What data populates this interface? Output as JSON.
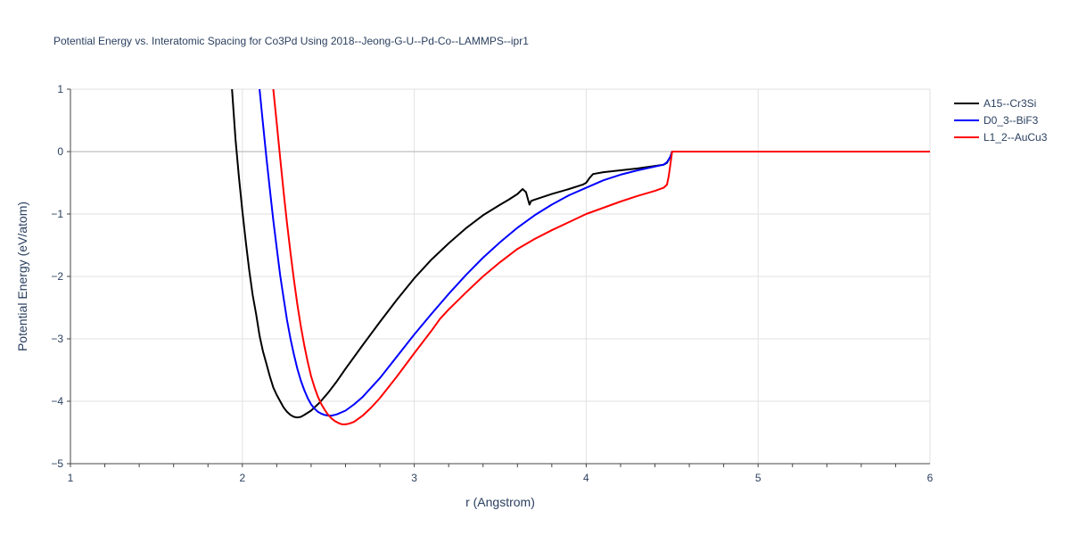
{
  "chart_data": {
    "type": "line",
    "title": "Potential Energy vs. Interatomic Spacing for Co3Pd Using 2018--Jeong-G-U--Pd-Co--LAMMPS--ipr1",
    "xlabel": "r (Angstrom)",
    "ylabel": "Potential Energy (eV/atom)",
    "xlim": [
      1,
      6
    ],
    "ylim": [
      -5,
      1
    ],
    "xticks": [
      "1",
      "2",
      "3",
      "4",
      "5",
      "6"
    ],
    "yticks": [
      "1",
      "0",
      "−1",
      "−2",
      "−3",
      "−4",
      "−5"
    ],
    "grid": true,
    "legend_position": "top-right",
    "series": [
      {
        "name": "A15--Cr3Si",
        "color": "#000000",
        "points": [
          [
            1.94,
            1.0
          ],
          [
            1.96,
            0.2
          ],
          [
            1.98,
            -0.4
          ],
          [
            2.0,
            -0.95
          ],
          [
            2.02,
            -1.45
          ],
          [
            2.04,
            -1.9
          ],
          [
            2.06,
            -2.3
          ],
          [
            2.08,
            -2.6
          ],
          [
            2.1,
            -2.95
          ],
          [
            2.12,
            -3.2
          ],
          [
            2.14,
            -3.4
          ],
          [
            2.16,
            -3.6
          ],
          [
            2.18,
            -3.78
          ],
          [
            2.2,
            -3.9
          ],
          [
            2.22,
            -4.0
          ],
          [
            2.24,
            -4.1
          ],
          [
            2.26,
            -4.17
          ],
          [
            2.28,
            -4.22
          ],
          [
            2.3,
            -4.25
          ],
          [
            2.32,
            -4.26
          ],
          [
            2.34,
            -4.25
          ],
          [
            2.36,
            -4.22
          ],
          [
            2.4,
            -4.15
          ],
          [
            2.45,
            -4.02
          ],
          [
            2.5,
            -3.86
          ],
          [
            2.55,
            -3.68
          ],
          [
            2.6,
            -3.48
          ],
          [
            2.7,
            -3.1
          ],
          [
            2.8,
            -2.73
          ],
          [
            2.9,
            -2.37
          ],
          [
            3.0,
            -2.03
          ],
          [
            3.1,
            -1.73
          ],
          [
            3.2,
            -1.47
          ],
          [
            3.3,
            -1.23
          ],
          [
            3.4,
            -1.02
          ],
          [
            3.5,
            -0.85
          ],
          [
            3.55,
            -0.77
          ],
          [
            3.6,
            -0.68
          ],
          [
            3.63,
            -0.6
          ],
          [
            3.65,
            -0.65
          ],
          [
            3.67,
            -0.85
          ],
          [
            3.68,
            -0.79
          ],
          [
            3.7,
            -0.77
          ],
          [
            3.8,
            -0.68
          ],
          [
            3.9,
            -0.6
          ],
          [
            3.98,
            -0.53
          ],
          [
            4.0,
            -0.5
          ],
          [
            4.02,
            -0.42
          ],
          [
            4.04,
            -0.36
          ],
          [
            4.1,
            -0.33
          ],
          [
            4.2,
            -0.3
          ],
          [
            4.3,
            -0.27
          ],
          [
            4.4,
            -0.23
          ],
          [
            4.45,
            -0.21
          ],
          [
            4.47,
            -0.18
          ],
          [
            4.49,
            -0.08
          ],
          [
            4.5,
            0.0
          ],
          [
            5.0,
            0.0
          ],
          [
            5.5,
            0.0
          ],
          [
            6.0,
            0.0
          ]
        ]
      },
      {
        "name": "D0_3--BiF3",
        "color": "#0000ff",
        "points": [
          [
            2.1,
            1.0
          ],
          [
            2.12,
            0.45
          ],
          [
            2.14,
            -0.1
          ],
          [
            2.16,
            -0.6
          ],
          [
            2.18,
            -1.1
          ],
          [
            2.2,
            -1.55
          ],
          [
            2.22,
            -1.98
          ],
          [
            2.24,
            -2.35
          ],
          [
            2.26,
            -2.7
          ],
          [
            2.28,
            -3.0
          ],
          [
            2.3,
            -3.25
          ],
          [
            2.32,
            -3.48
          ],
          [
            2.34,
            -3.67
          ],
          [
            2.36,
            -3.82
          ],
          [
            2.38,
            -3.95
          ],
          [
            2.4,
            -4.05
          ],
          [
            2.42,
            -4.12
          ],
          [
            2.44,
            -4.17
          ],
          [
            2.46,
            -4.2
          ],
          [
            2.48,
            -4.22
          ],
          [
            2.5,
            -4.23
          ],
          [
            2.52,
            -4.23
          ],
          [
            2.55,
            -4.21
          ],
          [
            2.6,
            -4.15
          ],
          [
            2.65,
            -4.05
          ],
          [
            2.7,
            -3.93
          ],
          [
            2.8,
            -3.63
          ],
          [
            2.9,
            -3.28
          ],
          [
            3.0,
            -2.93
          ],
          [
            3.1,
            -2.6
          ],
          [
            3.2,
            -2.28
          ],
          [
            3.3,
            -1.98
          ],
          [
            3.4,
            -1.7
          ],
          [
            3.5,
            -1.45
          ],
          [
            3.6,
            -1.22
          ],
          [
            3.7,
            -1.02
          ],
          [
            3.8,
            -0.85
          ],
          [
            3.9,
            -0.7
          ],
          [
            4.0,
            -0.58
          ],
          [
            4.1,
            -0.46
          ],
          [
            4.2,
            -0.37
          ],
          [
            4.3,
            -0.3
          ],
          [
            4.4,
            -0.24
          ],
          [
            4.45,
            -0.21
          ],
          [
            4.47,
            -0.17
          ],
          [
            4.49,
            -0.08
          ],
          [
            4.5,
            0.0
          ],
          [
            5.0,
            0.0
          ],
          [
            5.5,
            0.0
          ],
          [
            6.0,
            0.0
          ]
        ]
      },
      {
        "name": "L1_2--AuCu3",
        "color": "#ff0000",
        "points": [
          [
            2.18,
            1.0
          ],
          [
            2.2,
            0.45
          ],
          [
            2.22,
            -0.1
          ],
          [
            2.24,
            -0.65
          ],
          [
            2.26,
            -1.15
          ],
          [
            2.28,
            -1.62
          ],
          [
            2.3,
            -2.05
          ],
          [
            2.32,
            -2.45
          ],
          [
            2.34,
            -2.8
          ],
          [
            2.36,
            -3.1
          ],
          [
            2.38,
            -3.37
          ],
          [
            2.4,
            -3.6
          ],
          [
            2.42,
            -3.78
          ],
          [
            2.44,
            -3.93
          ],
          [
            2.46,
            -4.05
          ],
          [
            2.48,
            -4.14
          ],
          [
            2.5,
            -4.22
          ],
          [
            2.52,
            -4.28
          ],
          [
            2.54,
            -4.32
          ],
          [
            2.56,
            -4.35
          ],
          [
            2.58,
            -4.37
          ],
          [
            2.6,
            -4.37
          ],
          [
            2.62,
            -4.36
          ],
          [
            2.65,
            -4.33
          ],
          [
            2.7,
            -4.23
          ],
          [
            2.75,
            -4.1
          ],
          [
            2.8,
            -3.95
          ],
          [
            2.9,
            -3.6
          ],
          [
            3.0,
            -3.23
          ],
          [
            3.1,
            -2.87
          ],
          [
            3.15,
            -2.68
          ],
          [
            3.2,
            -2.53
          ],
          [
            3.3,
            -2.26
          ],
          [
            3.4,
            -2.0
          ],
          [
            3.5,
            -1.77
          ],
          [
            3.6,
            -1.56
          ],
          [
            3.7,
            -1.4
          ],
          [
            3.8,
            -1.26
          ],
          [
            3.9,
            -1.13
          ],
          [
            4.0,
            -1.0
          ],
          [
            4.1,
            -0.9
          ],
          [
            4.2,
            -0.8
          ],
          [
            4.3,
            -0.71
          ],
          [
            4.4,
            -0.63
          ],
          [
            4.45,
            -0.58
          ],
          [
            4.47,
            -0.53
          ],
          [
            4.48,
            -0.4
          ],
          [
            4.49,
            -0.2
          ],
          [
            4.5,
            0.0
          ],
          [
            5.0,
            0.0
          ],
          [
            5.5,
            0.0
          ],
          [
            6.0,
            0.0
          ]
        ]
      }
    ]
  }
}
